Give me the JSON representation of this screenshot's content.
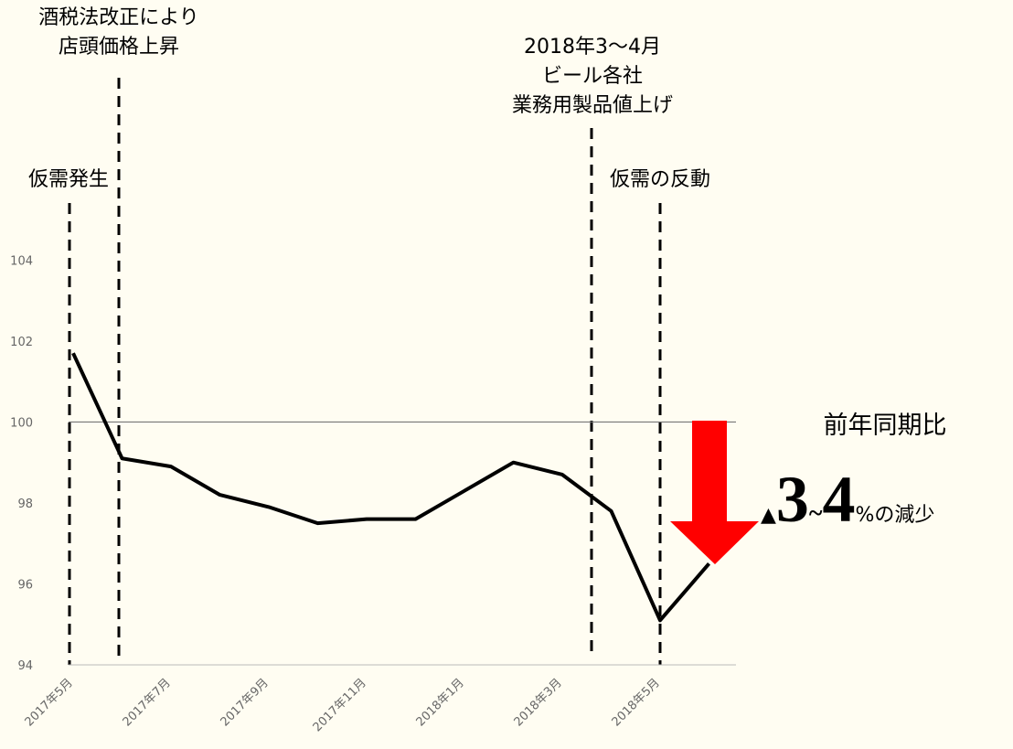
{
  "chart_data": {
    "type": "line",
    "categories": [
      "2017年5月",
      null,
      "2017年7月",
      null,
      "2017年9月",
      null,
      "2017年11月",
      null,
      "2018年1月",
      null,
      "2018年3月",
      null,
      "2018年5月",
      null
    ],
    "series": [
      {
        "color": "#000000",
        "values": [
          101.7,
          99.1,
          98.9,
          98.2,
          97.9,
          97.5,
          97.6,
          97.6,
          98.3,
          99.0,
          98.7,
          97.8,
          95.1,
          96.5
        ]
      }
    ],
    "ylim": [
      94,
      105.5
    ],
    "yticks": [
      94,
      96,
      98,
      100,
      102,
      104
    ],
    "reference_line": 100,
    "annotations": [
      {
        "lines": [
          "仮需発生"
        ]
      },
      {
        "lines": [
          "酒税法改正により",
          "店頭価格上昇"
        ]
      },
      {
        "lines": [
          "2018年3～4月",
          "ビール各社",
          "業務用製品値上げ"
        ]
      },
      {
        "lines": [
          "仮需の反動"
        ]
      }
    ],
    "callout": {
      "title": "前年同期比",
      "parts": [
        "▲",
        "3",
        "~",
        "4",
        "%の減少"
      ]
    }
  }
}
